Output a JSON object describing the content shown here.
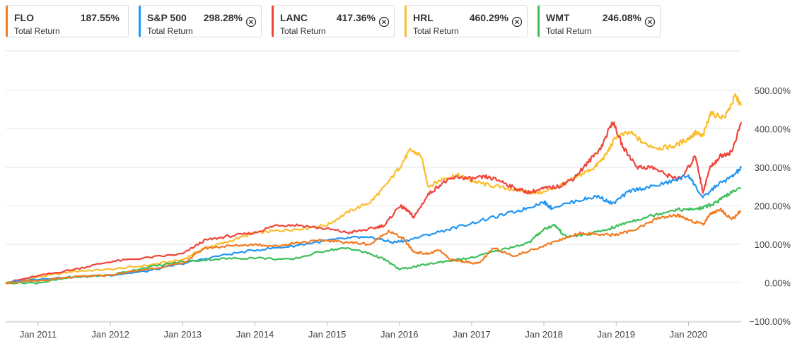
{
  "legend": [
    {
      "ticker": "FLO",
      "value": "187.55%",
      "sublabel": "Total Return",
      "color": "#f47b20",
      "closable": false
    },
    {
      "ticker": "S&P 500",
      "value": "298.28%",
      "sublabel": "Total Return",
      "color": "#2196f3",
      "closable": true
    },
    {
      "ticker": "LANC",
      "value": "417.36%",
      "sublabel": "Total Return",
      "color": "#f0443a",
      "closable": true
    },
    {
      "ticker": "HRL",
      "value": "460.29%",
      "sublabel": "Total Return",
      "color": "#fbbd2f",
      "closable": true
    },
    {
      "ticker": "WMT",
      "value": "246.08%",
      "sublabel": "Total Return",
      "color": "#3cbf5a",
      "closable": true
    }
  ],
  "chart_data": {
    "type": "line",
    "title": "",
    "xlabel": "",
    "ylabel": "",
    "x_range": [
      2010.55,
      2020.73
    ],
    "ylim": [
      -100,
      500
    ],
    "y_ticks": [
      500,
      400,
      300,
      200,
      100,
      0,
      -100
    ],
    "y_tick_labels": [
      "500.00%",
      "400.00%",
      "300.00%",
      "200.00%",
      "100.00%",
      "0.00%",
      "−100.00%"
    ],
    "x_ticks": [
      2011,
      2012,
      2013,
      2014,
      2015,
      2016,
      2017,
      2018,
      2019,
      2020
    ],
    "x_tick_labels": [
      "Jan 2011",
      "Jan 2012",
      "Jan 2013",
      "Jan 2014",
      "Jan 2015",
      "Jan 2016",
      "Jan 2017",
      "Jan 2018",
      "Jan 2019",
      "Jan 2020"
    ],
    "grid": true,
    "legend_position": "top",
    "series": [
      {
        "name": "HRL",
        "color": "#fbbd2f",
        "x": [
          2010.55,
          2011.0,
          2011.5,
          2012.0,
          2012.5,
          2013.0,
          2013.3,
          2013.6,
          2014.0,
          2014.3,
          2014.6,
          2015.0,
          2015.3,
          2015.6,
          2015.8,
          2016.0,
          2016.15,
          2016.3,
          2016.4,
          2016.6,
          2016.8,
          2017.0,
          2017.2,
          2017.5,
          2017.8,
          2018.0,
          2018.3,
          2018.5,
          2018.7,
          2018.85,
          2019.0,
          2019.2,
          2019.4,
          2019.6,
          2019.8,
          2020.0,
          2020.1,
          2020.2,
          2020.3,
          2020.5,
          2020.65,
          2020.73
        ],
        "y": [
          0,
          15,
          30,
          35,
          45,
          60,
          90,
          105,
          130,
          135,
          140,
          150,
          185,
          210,
          250,
          300,
          345,
          330,
          250,
          270,
          280,
          265,
          255,
          245,
          235,
          235,
          260,
          280,
          300,
          330,
          380,
          390,
          360,
          350,
          355,
          375,
          390,
          380,
          440,
          430,
          485,
          460.29
        ]
      },
      {
        "name": "LANC",
        "color": "#f0443a",
        "x": [
          2010.55,
          2011.0,
          2011.5,
          2012.0,
          2012.5,
          2013.0,
          2013.3,
          2013.6,
          2014.0,
          2014.3,
          2014.6,
          2015.0,
          2015.3,
          2015.6,
          2015.8,
          2016.0,
          2016.1,
          2016.2,
          2016.4,
          2016.6,
          2016.8,
          2017.0,
          2017.2,
          2017.4,
          2017.6,
          2017.8,
          2018.0,
          2018.2,
          2018.4,
          2018.6,
          2018.8,
          2018.95,
          2019.1,
          2019.3,
          2019.5,
          2019.7,
          2019.9,
          2020.1,
          2020.2,
          2020.3,
          2020.45,
          2020.6,
          2020.73
        ],
        "y": [
          0,
          18,
          35,
          55,
          65,
          75,
          110,
          120,
          130,
          150,
          150,
          140,
          130,
          140,
          150,
          200,
          190,
          170,
          230,
          260,
          275,
          270,
          275,
          265,
          245,
          235,
          245,
          250,
          270,
          310,
          355,
          420,
          350,
          300,
          300,
          280,
          270,
          330,
          235,
          300,
          330,
          340,
          417.36
        ]
      },
      {
        "name": "S&P 500",
        "color": "#2196f3",
        "x": [
          2010.55,
          2011.0,
          2011.5,
          2012.0,
          2012.5,
          2013.0,
          2013.5,
          2014.0,
          2014.5,
          2015.0,
          2015.4,
          2015.7,
          2015.9,
          2016.1,
          2016.5,
          2016.9,
          2017.3,
          2017.7,
          2018.0,
          2018.1,
          2018.5,
          2018.75,
          2018.95,
          2019.2,
          2019.5,
          2019.8,
          2020.0,
          2020.2,
          2020.4,
          2020.6,
          2020.73
        ],
        "y": [
          0,
          10,
          15,
          20,
          30,
          50,
          70,
          85,
          95,
          110,
          118,
          115,
          105,
          110,
          130,
          150,
          170,
          190,
          210,
          195,
          215,
          225,
          205,
          240,
          250,
          265,
          280,
          220,
          255,
          275,
          298.28
        ]
      },
      {
        "name": "WMT",
        "color": "#3cbf5a",
        "x": [
          2010.55,
          2011.0,
          2011.5,
          2012.0,
          2012.5,
          2013.0,
          2013.5,
          2014.0,
          2014.5,
          2015.0,
          2015.3,
          2015.6,
          2015.8,
          2016.0,
          2016.3,
          2016.6,
          2017.0,
          2017.4,
          2017.8,
          2018.0,
          2018.15,
          2018.3,
          2018.6,
          2018.9,
          2019.2,
          2019.5,
          2019.8,
          2020.0,
          2020.2,
          2020.4,
          2020.55,
          2020.73
        ],
        "y": [
          0,
          0,
          15,
          20,
          40,
          55,
          62,
          65,
          60,
          85,
          90,
          75,
          60,
          35,
          45,
          55,
          65,
          85,
          105,
          140,
          150,
          120,
          125,
          140,
          160,
          175,
          190,
          190,
          195,
          210,
          230,
          246.08
        ]
      },
      {
        "name": "FLO",
        "color": "#f47b20",
        "x": [
          2010.55,
          2011.0,
          2011.5,
          2012.0,
          2012.5,
          2013.0,
          2013.3,
          2013.6,
          2014.0,
          2014.3,
          2014.6,
          2015.0,
          2015.3,
          2015.6,
          2015.85,
          2016.05,
          2016.2,
          2016.4,
          2016.55,
          2016.7,
          2016.9,
          2017.1,
          2017.3,
          2017.6,
          2017.9,
          2018.2,
          2018.5,
          2018.8,
          2019.0,
          2019.3,
          2019.6,
          2019.85,
          2020.0,
          2020.2,
          2020.3,
          2020.45,
          2020.6,
          2020.73
        ],
        "y": [
          0,
          5,
          15,
          20,
          35,
          50,
          90,
          95,
          100,
          95,
          105,
          110,
          105,
          100,
          135,
          115,
          80,
          75,
          85,
          60,
          55,
          50,
          90,
          70,
          90,
          110,
          130,
          125,
          125,
          140,
          170,
          175,
          165,
          150,
          180,
          190,
          165,
          187.55
        ]
      }
    ]
  }
}
